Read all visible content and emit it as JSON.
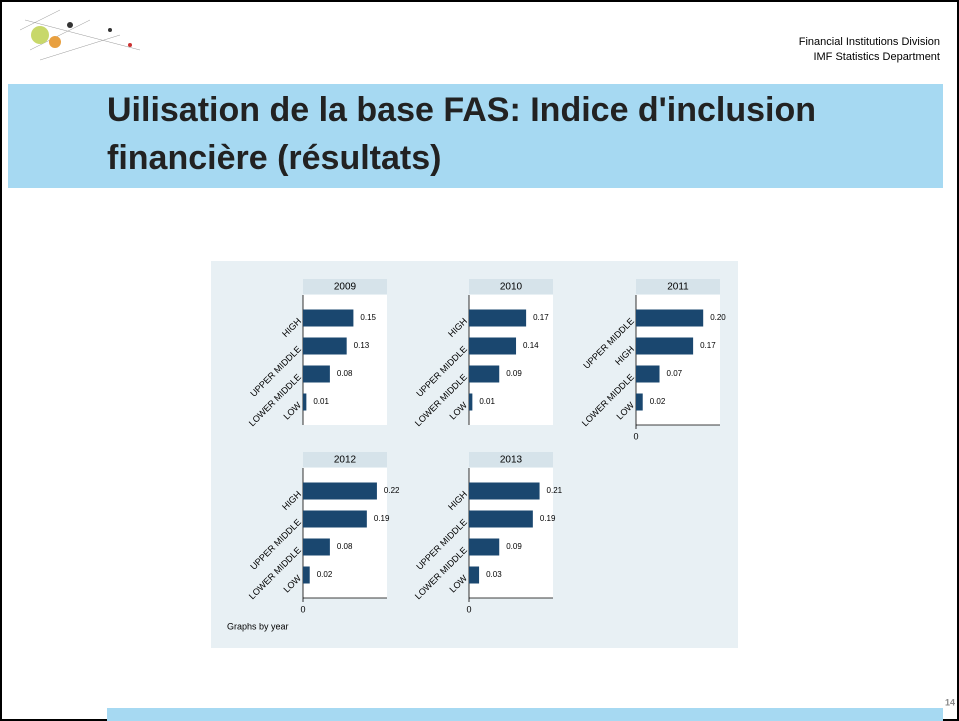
{
  "header": {
    "org_line1": "Financial Institutions Division",
    "org_line2": "IMF Statistics Department",
    "title_line1": "Uilisation de la base FAS: Indice d'inclusion",
    "title_line2": "financière (résultats)",
    "page_number": "14"
  },
  "note": "Graphs by year",
  "chart_data": [
    {
      "type": "bar",
      "orientation": "horizontal",
      "title": "2009",
      "categories": [
        "HIGH",
        "UPPER MIDDLE",
        "LOWER MIDDLE",
        "LOW"
      ],
      "values": [
        0.15,
        0.13,
        0.08,
        0.01
      ],
      "value_labels": [
        "0.15",
        "0.13",
        "0.08",
        "0.01"
      ],
      "color": "#1a476f",
      "xlim": [
        0,
        0.25
      ]
    },
    {
      "type": "bar",
      "orientation": "horizontal",
      "title": "2010",
      "categories": [
        "HIGH",
        "UPPER MIDDLE",
        "LOWER MIDDLE",
        "LOW"
      ],
      "values": [
        0.17,
        0.14,
        0.09,
        0.01
      ],
      "value_labels": [
        "0.17",
        "0.14",
        "0.09",
        "0.01"
      ],
      "color": "#1a476f",
      "xlim": [
        0,
        0.25
      ]
    },
    {
      "type": "bar",
      "orientation": "horizontal",
      "title": "2011",
      "categories": [
        "UPPER MIDDLE",
        "HIGH",
        "LOWER MIDDLE",
        "LOW"
      ],
      "values": [
        0.2,
        0.17,
        0.07,
        0.02
      ],
      "value_labels": [
        "0.20",
        "0.17",
        "0.07",
        "0.02"
      ],
      "color": "#1a476f",
      "xlim": [
        0,
        0.25
      ],
      "xticks": [
        0
      ]
    },
    {
      "type": "bar",
      "orientation": "horizontal",
      "title": "2012",
      "categories": [
        "HIGH",
        "UPPER MIDDLE",
        "LOWER MIDDLE",
        "LOW"
      ],
      "values": [
        0.22,
        0.19,
        0.08,
        0.02
      ],
      "value_labels": [
        "0.22",
        "0.19",
        "0.08",
        "0.02"
      ],
      "color": "#1a476f",
      "xlim": [
        0,
        0.25
      ],
      "xticks": [
        0
      ]
    },
    {
      "type": "bar",
      "orientation": "horizontal",
      "title": "2013",
      "categories": [
        "HIGH",
        "UPPER MIDDLE",
        "LOWER MIDDLE",
        "LOW"
      ],
      "values": [
        0.21,
        0.19,
        0.09,
        0.03
      ],
      "value_labels": [
        "0.21",
        "0.19",
        "0.09",
        "0.03"
      ],
      "color": "#1a476f",
      "xlim": [
        0,
        0.25
      ],
      "xticks": [
        0
      ]
    }
  ]
}
